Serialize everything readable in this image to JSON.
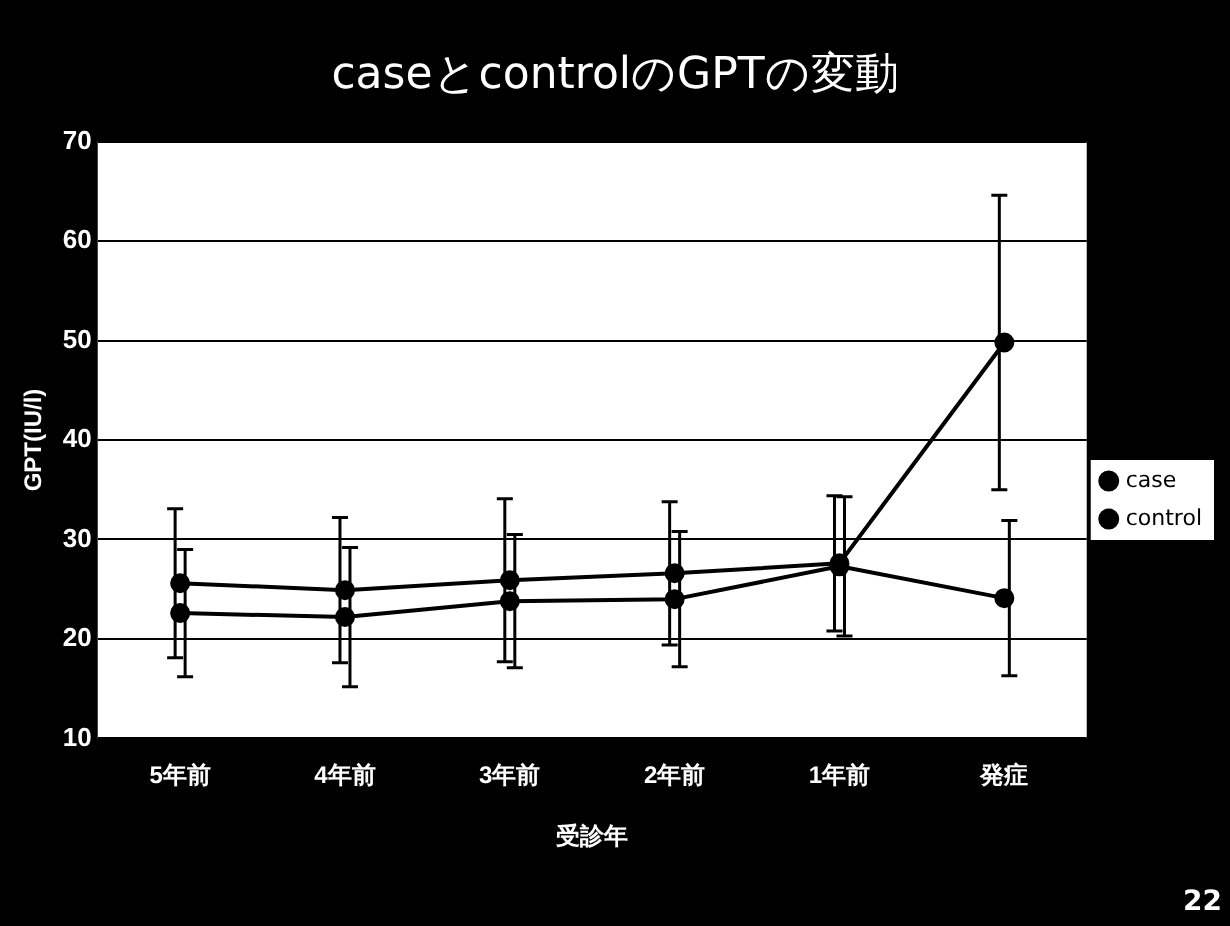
{
  "chart_data": {
    "type": "line",
    "title": "caseとcontrolのGPTの変動",
    "xlabel": "受診年",
    "ylabel": "GPT(IU/l)",
    "categories": [
      "5年前",
      "4年前",
      "3年前",
      "2年前",
      "1年前",
      "発症"
    ],
    "series": [
      {
        "name": "case",
        "color": "#000000",
        "values": [
          25.6,
          24.9,
          25.9,
          26.6,
          27.6,
          49.8
        ],
        "errors": [
          7.5,
          7.3,
          8.2,
          7.2,
          6.8,
          14.8
        ]
      },
      {
        "name": "control",
        "color": "#000000",
        "values": [
          22.6,
          22.2,
          23.8,
          24.0,
          27.3,
          24.1
        ],
        "errors": [
          6.4,
          7,
          6.7,
          6.8,
          7,
          7.8
        ]
      }
    ],
    "ylim": [
      10,
      70
    ],
    "yticks": [
      10,
      20,
      30,
      40,
      50,
      60,
      70
    ],
    "grid": "y",
    "legend": "right",
    "marker": "circle",
    "line_style": "solid",
    "annotations": [
      "22"
    ]
  }
}
